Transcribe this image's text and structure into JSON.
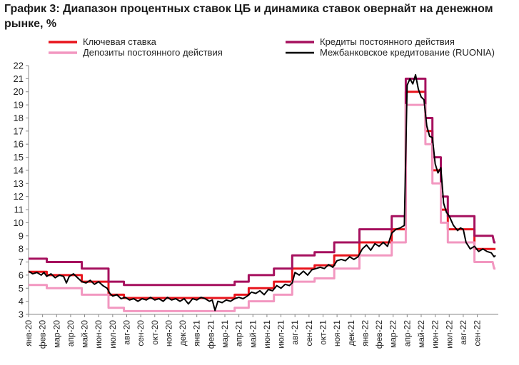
{
  "chart_data": {
    "type": "line",
    "title": "График 3: Диапазон процентных ставок ЦБ и динамика ставок овернайт на денежном рынке, %",
    "ylim": [
      3,
      22
    ],
    "yticks": [
      3,
      4,
      5,
      6,
      7,
      8,
      9,
      10,
      11,
      12,
      13,
      14,
      15,
      16,
      17,
      18,
      19,
      20,
      21,
      22
    ],
    "xlim": [
      0,
      33.5
    ],
    "xticks": [
      "янв-20",
      "фев-20",
      "мар-20",
      "апр-20",
      "май-20",
      "июн-20",
      "июл-20",
      "авг-20",
      "сен-20",
      "окт-20",
      "ноя-20",
      "дек-20",
      "янв-21",
      "фев-21",
      "мар-21",
      "апр-21",
      "май-21",
      "июн-21",
      "июл-21",
      "авг-21",
      "сен-21",
      "окт-21",
      "ноя-21",
      "дек-21",
      "янв-22",
      "фев-22",
      "мар-22",
      "апр-22",
      "май-22",
      "июн-22",
      "июл-22",
      "авг-22",
      "сен-22"
    ],
    "grid": false,
    "legend_position": "top",
    "series": [
      {
        "name": "Ключевая ставка",
        "color": "#e8141c",
        "points": [
          [
            0,
            6.25
          ],
          [
            1.3,
            6.25
          ],
          [
            1.3,
            6.0
          ],
          [
            3.8,
            6.0
          ],
          [
            3.8,
            5.5
          ],
          [
            5.7,
            5.5
          ],
          [
            5.7,
            4.5
          ],
          [
            6.8,
            4.5
          ],
          [
            6.8,
            4.25
          ],
          [
            14.7,
            4.25
          ],
          [
            14.7,
            4.5
          ],
          [
            15.7,
            4.5
          ],
          [
            15.7,
            5.0
          ],
          [
            17.5,
            5.0
          ],
          [
            17.5,
            5.5
          ],
          [
            18.8,
            5.5
          ],
          [
            18.8,
            6.5
          ],
          [
            20.4,
            6.5
          ],
          [
            20.4,
            6.75
          ],
          [
            21.8,
            6.75
          ],
          [
            21.8,
            7.5
          ],
          [
            23.6,
            7.5
          ],
          [
            23.6,
            8.5
          ],
          [
            25.9,
            8.5
          ],
          [
            25.9,
            9.5
          ],
          [
            26.9,
            9.5
          ],
          [
            26.9,
            20.0
          ],
          [
            28.3,
            20.0
          ],
          [
            28.3,
            17.0
          ],
          [
            28.8,
            17.0
          ],
          [
            28.8,
            14.0
          ],
          [
            29.4,
            14.0
          ],
          [
            29.4,
            11.0
          ],
          [
            29.9,
            11.0
          ],
          [
            29.9,
            9.5
          ],
          [
            31.8,
            9.5
          ],
          [
            31.8,
            8.0
          ],
          [
            33.3,
            8.0
          ]
        ]
      },
      {
        "name": "Кредиты постоянного действия",
        "color": "#a6105e",
        "points": [
          [
            0,
            7.25
          ],
          [
            1.3,
            7.25
          ],
          [
            1.3,
            7.0
          ],
          [
            3.8,
            7.0
          ],
          [
            3.8,
            6.5
          ],
          [
            5.7,
            6.5
          ],
          [
            5.7,
            5.5
          ],
          [
            6.8,
            5.5
          ],
          [
            6.8,
            5.25
          ],
          [
            14.7,
            5.25
          ],
          [
            14.7,
            5.5
          ],
          [
            15.7,
            5.5
          ],
          [
            15.7,
            6.0
          ],
          [
            17.5,
            6.0
          ],
          [
            17.5,
            6.5
          ],
          [
            18.8,
            6.5
          ],
          [
            18.8,
            7.5
          ],
          [
            20.4,
            7.5
          ],
          [
            20.4,
            7.75
          ],
          [
            21.8,
            7.75
          ],
          [
            21.8,
            8.5
          ],
          [
            23.6,
            8.5
          ],
          [
            23.6,
            9.5
          ],
          [
            25.9,
            9.5
          ],
          [
            25.9,
            10.5
          ],
          [
            26.9,
            10.5
          ],
          [
            26.9,
            21.0
          ],
          [
            28.3,
            21.0
          ],
          [
            28.3,
            18.0
          ],
          [
            28.8,
            18.0
          ],
          [
            28.8,
            15.0
          ],
          [
            29.4,
            15.0
          ],
          [
            29.4,
            12.0
          ],
          [
            29.9,
            12.0
          ],
          [
            29.9,
            10.5
          ],
          [
            31.8,
            10.5
          ],
          [
            31.8,
            9.0
          ],
          [
            33.1,
            9.0
          ],
          [
            33.2,
            8.5
          ],
          [
            33.3,
            8.5
          ]
        ]
      },
      {
        "name": "Депозиты постоянного действия",
        "color": "#f297c0",
        "points": [
          [
            0,
            5.25
          ],
          [
            1.3,
            5.25
          ],
          [
            1.3,
            5.0
          ],
          [
            3.8,
            5.0
          ],
          [
            3.8,
            4.5
          ],
          [
            5.7,
            4.5
          ],
          [
            5.7,
            3.5
          ],
          [
            6.8,
            3.5
          ],
          [
            6.8,
            3.25
          ],
          [
            14.7,
            3.25
          ],
          [
            14.7,
            3.5
          ],
          [
            15.7,
            3.5
          ],
          [
            15.7,
            4.0
          ],
          [
            17.5,
            4.0
          ],
          [
            17.5,
            4.5
          ],
          [
            18.8,
            4.5
          ],
          [
            18.8,
            5.5
          ],
          [
            20.4,
            5.5
          ],
          [
            20.4,
            5.75
          ],
          [
            21.8,
            5.75
          ],
          [
            21.8,
            6.5
          ],
          [
            23.6,
            6.5
          ],
          [
            23.6,
            7.5
          ],
          [
            25.9,
            7.5
          ],
          [
            25.9,
            8.5
          ],
          [
            26.9,
            8.5
          ],
          [
            26.9,
            19.0
          ],
          [
            28.3,
            19.0
          ],
          [
            28.3,
            16.0
          ],
          [
            28.8,
            16.0
          ],
          [
            28.8,
            13.0
          ],
          [
            29.4,
            13.0
          ],
          [
            29.4,
            10.0
          ],
          [
            29.9,
            10.0
          ],
          [
            29.9,
            8.5
          ],
          [
            31.8,
            8.5
          ],
          [
            31.8,
            7.0
          ],
          [
            33.1,
            7.0
          ],
          [
            33.2,
            6.5
          ],
          [
            33.3,
            6.5
          ]
        ]
      },
      {
        "name": "Межбанковское кредитование (RUONIA)",
        "color": "#000000",
        "points": [
          [
            0,
            6.3
          ],
          [
            0.3,
            6.1
          ],
          [
            0.6,
            6.2
          ],
          [
            0.9,
            6.0
          ],
          [
            1.1,
            6.2
          ],
          [
            1.3,
            5.9
          ],
          [
            1.6,
            6.1
          ],
          [
            1.9,
            5.8
          ],
          [
            2.2,
            6.0
          ],
          [
            2.5,
            5.9
          ],
          [
            2.7,
            5.4
          ],
          [
            2.9,
            5.9
          ],
          [
            3.2,
            6.1
          ],
          [
            3.5,
            5.8
          ],
          [
            3.8,
            5.5
          ],
          [
            4.1,
            5.4
          ],
          [
            4.4,
            5.6
          ],
          [
            4.7,
            5.3
          ],
          [
            5.0,
            5.5
          ],
          [
            5.3,
            5.2
          ],
          [
            5.6,
            5.0
          ],
          [
            5.8,
            4.6
          ],
          [
            6.0,
            4.4
          ],
          [
            6.3,
            4.5
          ],
          [
            6.6,
            4.2
          ],
          [
            6.9,
            4.3
          ],
          [
            7.2,
            4.1
          ],
          [
            7.5,
            4.2
          ],
          [
            7.8,
            4.0
          ],
          [
            8.1,
            4.2
          ],
          [
            8.4,
            4.1
          ],
          [
            8.7,
            4.3
          ],
          [
            9.0,
            4.1
          ],
          [
            9.3,
            4.2
          ],
          [
            9.6,
            4.0
          ],
          [
            9.9,
            4.3
          ],
          [
            10.2,
            4.1
          ],
          [
            10.5,
            4.2
          ],
          [
            10.8,
            4.0
          ],
          [
            11.1,
            4.2
          ],
          [
            11.4,
            3.8
          ],
          [
            11.7,
            4.2
          ],
          [
            12.0,
            4.1
          ],
          [
            12.3,
            4.3
          ],
          [
            12.6,
            4.2
          ],
          [
            12.9,
            4.0
          ],
          [
            13.1,
            4.1
          ],
          [
            13.3,
            3.3
          ],
          [
            13.5,
            4.0
          ],
          [
            13.8,
            3.9
          ],
          [
            14.1,
            4.1
          ],
          [
            14.4,
            4.0
          ],
          [
            14.7,
            4.2
          ],
          [
            15.0,
            4.3
          ],
          [
            15.3,
            4.2
          ],
          [
            15.6,
            4.4
          ],
          [
            15.9,
            4.7
          ],
          [
            16.2,
            4.6
          ],
          [
            16.5,
            4.8
          ],
          [
            16.8,
            4.5
          ],
          [
            17.1,
            4.9
          ],
          [
            17.4,
            4.8
          ],
          [
            17.7,
            5.2
          ],
          [
            18.0,
            5.0
          ],
          [
            18.3,
            5.3
          ],
          [
            18.6,
            5.2
          ],
          [
            18.8,
            5.4
          ],
          [
            19.0,
            6.2
          ],
          [
            19.3,
            6.0
          ],
          [
            19.6,
            6.3
          ],
          [
            19.9,
            6.0
          ],
          [
            20.2,
            6.4
          ],
          [
            20.5,
            6.5
          ],
          [
            20.8,
            6.6
          ],
          [
            21.1,
            6.5
          ],
          [
            21.4,
            6.8
          ],
          [
            21.7,
            6.6
          ],
          [
            22.0,
            7.1
          ],
          [
            22.3,
            7.2
          ],
          [
            22.6,
            7.1
          ],
          [
            22.9,
            7.4
          ],
          [
            23.2,
            7.2
          ],
          [
            23.5,
            7.4
          ],
          [
            23.8,
            8.0
          ],
          [
            24.1,
            8.3
          ],
          [
            24.4,
            7.9
          ],
          [
            24.7,
            8.4
          ],
          [
            25.0,
            8.2
          ],
          [
            25.3,
            8.5
          ],
          [
            25.6,
            8.2
          ],
          [
            25.9,
            9.2
          ],
          [
            26.2,
            9.5
          ],
          [
            26.5,
            9.6
          ],
          [
            26.8,
            9.8
          ],
          [
            27.0,
            20.5
          ],
          [
            27.2,
            21.0
          ],
          [
            27.4,
            20.6
          ],
          [
            27.6,
            21.3
          ],
          [
            27.8,
            20.2
          ],
          [
            28.0,
            19.6
          ],
          [
            28.2,
            19.4
          ],
          [
            28.4,
            17.4
          ],
          [
            28.6,
            16.6
          ],
          [
            28.8,
            16.5
          ],
          [
            29.0,
            14.5
          ],
          [
            29.2,
            13.8
          ],
          [
            29.4,
            14.2
          ],
          [
            29.6,
            11.5
          ],
          [
            29.8,
            10.8
          ],
          [
            30.0,
            10.5
          ],
          [
            30.3,
            9.8
          ],
          [
            30.6,
            9.4
          ],
          [
            30.8,
            9.6
          ],
          [
            31.0,
            9.5
          ],
          [
            31.2,
            8.5
          ],
          [
            31.5,
            8.0
          ],
          [
            31.8,
            8.2
          ],
          [
            32.1,
            7.8
          ],
          [
            32.4,
            8.0
          ],
          [
            32.7,
            7.8
          ],
          [
            33.0,
            7.7
          ],
          [
            33.2,
            7.4
          ],
          [
            33.3,
            7.5
          ]
        ]
      }
    ]
  }
}
